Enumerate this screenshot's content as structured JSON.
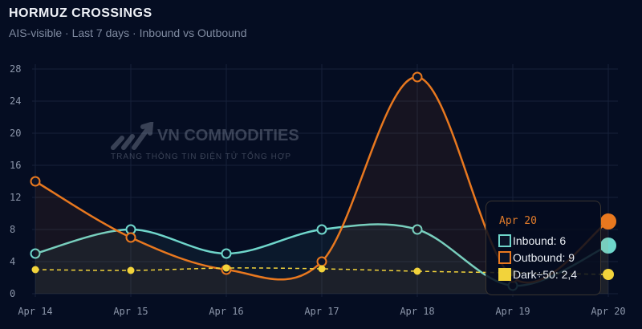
{
  "header": {
    "title": "HORMUZ CROSSINGS",
    "subtitle": "AIS-visible · Last 7 days · Inbound vs Outbound"
  },
  "watermark": {
    "brand": "VN COMMODITIES",
    "tagline": "TRANG THÔNG TIN ĐIỆN TỬ TỔNG HỢP"
  },
  "tooltip": {
    "date": "Apr 20",
    "inbound": "Inbound: 6",
    "outbound": "Outbound: 9",
    "dark": "Dark÷50: 2,4"
  },
  "chart_data": {
    "type": "line",
    "categories": [
      "Apr 14",
      "Apr 15",
      "Apr 16",
      "Apr 17",
      "Apr 18",
      "Apr 19",
      "Apr 20"
    ],
    "ylim": [
      0,
      28
    ],
    "yticks": [
      0,
      4,
      8,
      12,
      16,
      20,
      24,
      28
    ],
    "grid": true,
    "series": [
      {
        "name": "Inbound",
        "values": [
          5,
          8,
          5,
          8,
          8,
          1,
          6
        ],
        "color": "#6fd6cb"
      },
      {
        "name": "Outbound",
        "values": [
          14,
          7,
          3,
          4,
          27,
          2,
          9
        ],
        "color": "#e8781f"
      },
      {
        "name": "Dark÷50",
        "values": [
          3,
          2.9,
          3.2,
          3.1,
          2.8,
          2.6,
          2.4
        ],
        "color": "#f2d33b"
      }
    ]
  }
}
